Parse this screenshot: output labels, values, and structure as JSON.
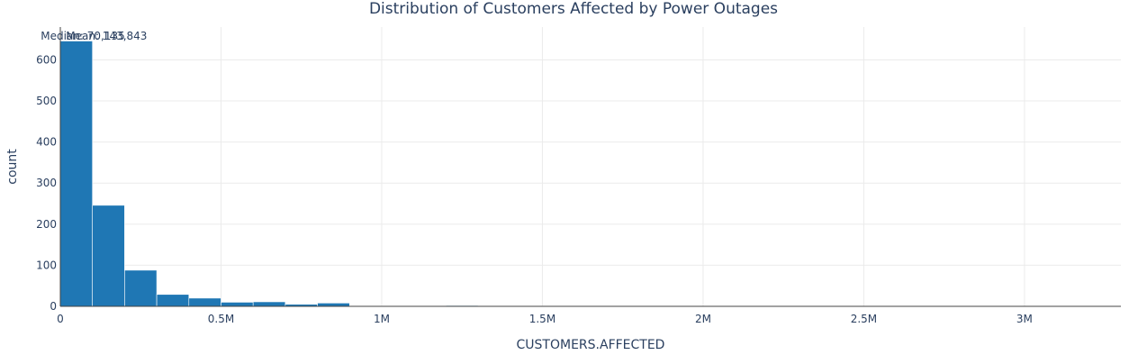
{
  "chart_data": {
    "type": "bar",
    "title": "Distribution of Customers Affected by Power Outages",
    "xlabel": "CUSTOMERS.AFFECTED",
    "ylabel": "count",
    "xlim": [
      0,
      3300000
    ],
    "ylim": [
      0,
      680
    ],
    "bin_width": 100000,
    "x_ticks": [
      {
        "value": 0,
        "label": "0"
      },
      {
        "value": 500000,
        "label": "0.5M"
      },
      {
        "value": 1000000,
        "label": "1M"
      },
      {
        "value": 1500000,
        "label": "1.5M"
      },
      {
        "value": 2000000,
        "label": "2M"
      },
      {
        "value": 2500000,
        "label": "2.5M"
      },
      {
        "value": 3000000,
        "label": "3M"
      }
    ],
    "y_ticks": [
      {
        "value": 0,
        "label": "0"
      },
      {
        "value": 100,
        "label": "100"
      },
      {
        "value": 200,
        "label": "200"
      },
      {
        "value": 300,
        "label": "300"
      },
      {
        "value": 400,
        "label": "400"
      },
      {
        "value": 500,
        "label": "500"
      },
      {
        "value": 600,
        "label": "600"
      }
    ],
    "grid": true,
    "bar_color": "#1f77b4",
    "bins": [
      {
        "start": 0,
        "end": 100000,
        "count": 646
      },
      {
        "start": 100000,
        "end": 200000,
        "count": 246
      },
      {
        "start": 200000,
        "end": 300000,
        "count": 88
      },
      {
        "start": 300000,
        "end": 400000,
        "count": 29
      },
      {
        "start": 400000,
        "end": 500000,
        "count": 20
      },
      {
        "start": 500000,
        "end": 600000,
        "count": 10
      },
      {
        "start": 600000,
        "end": 700000,
        "count": 11
      },
      {
        "start": 700000,
        "end": 800000,
        "count": 5
      },
      {
        "start": 800000,
        "end": 900000,
        "count": 8
      },
      {
        "start": 900000,
        "end": 1000000,
        "count": 1
      },
      {
        "start": 1000000,
        "end": 1100000,
        "count": 1
      },
      {
        "start": 1200000,
        "end": 1300000,
        "count": 2
      },
      {
        "start": 1400000,
        "end": 1500000,
        "count": 1
      },
      {
        "start": 2100000,
        "end": 2200000,
        "count": 1
      },
      {
        "start": 3200000,
        "end": 3300000,
        "count": 1
      }
    ],
    "annotations": [
      {
        "name": "median",
        "text": "Median: 70,135",
        "x": 70135
      },
      {
        "name": "mean",
        "text": "Mean: 143,843",
        "x": 143843
      }
    ]
  }
}
